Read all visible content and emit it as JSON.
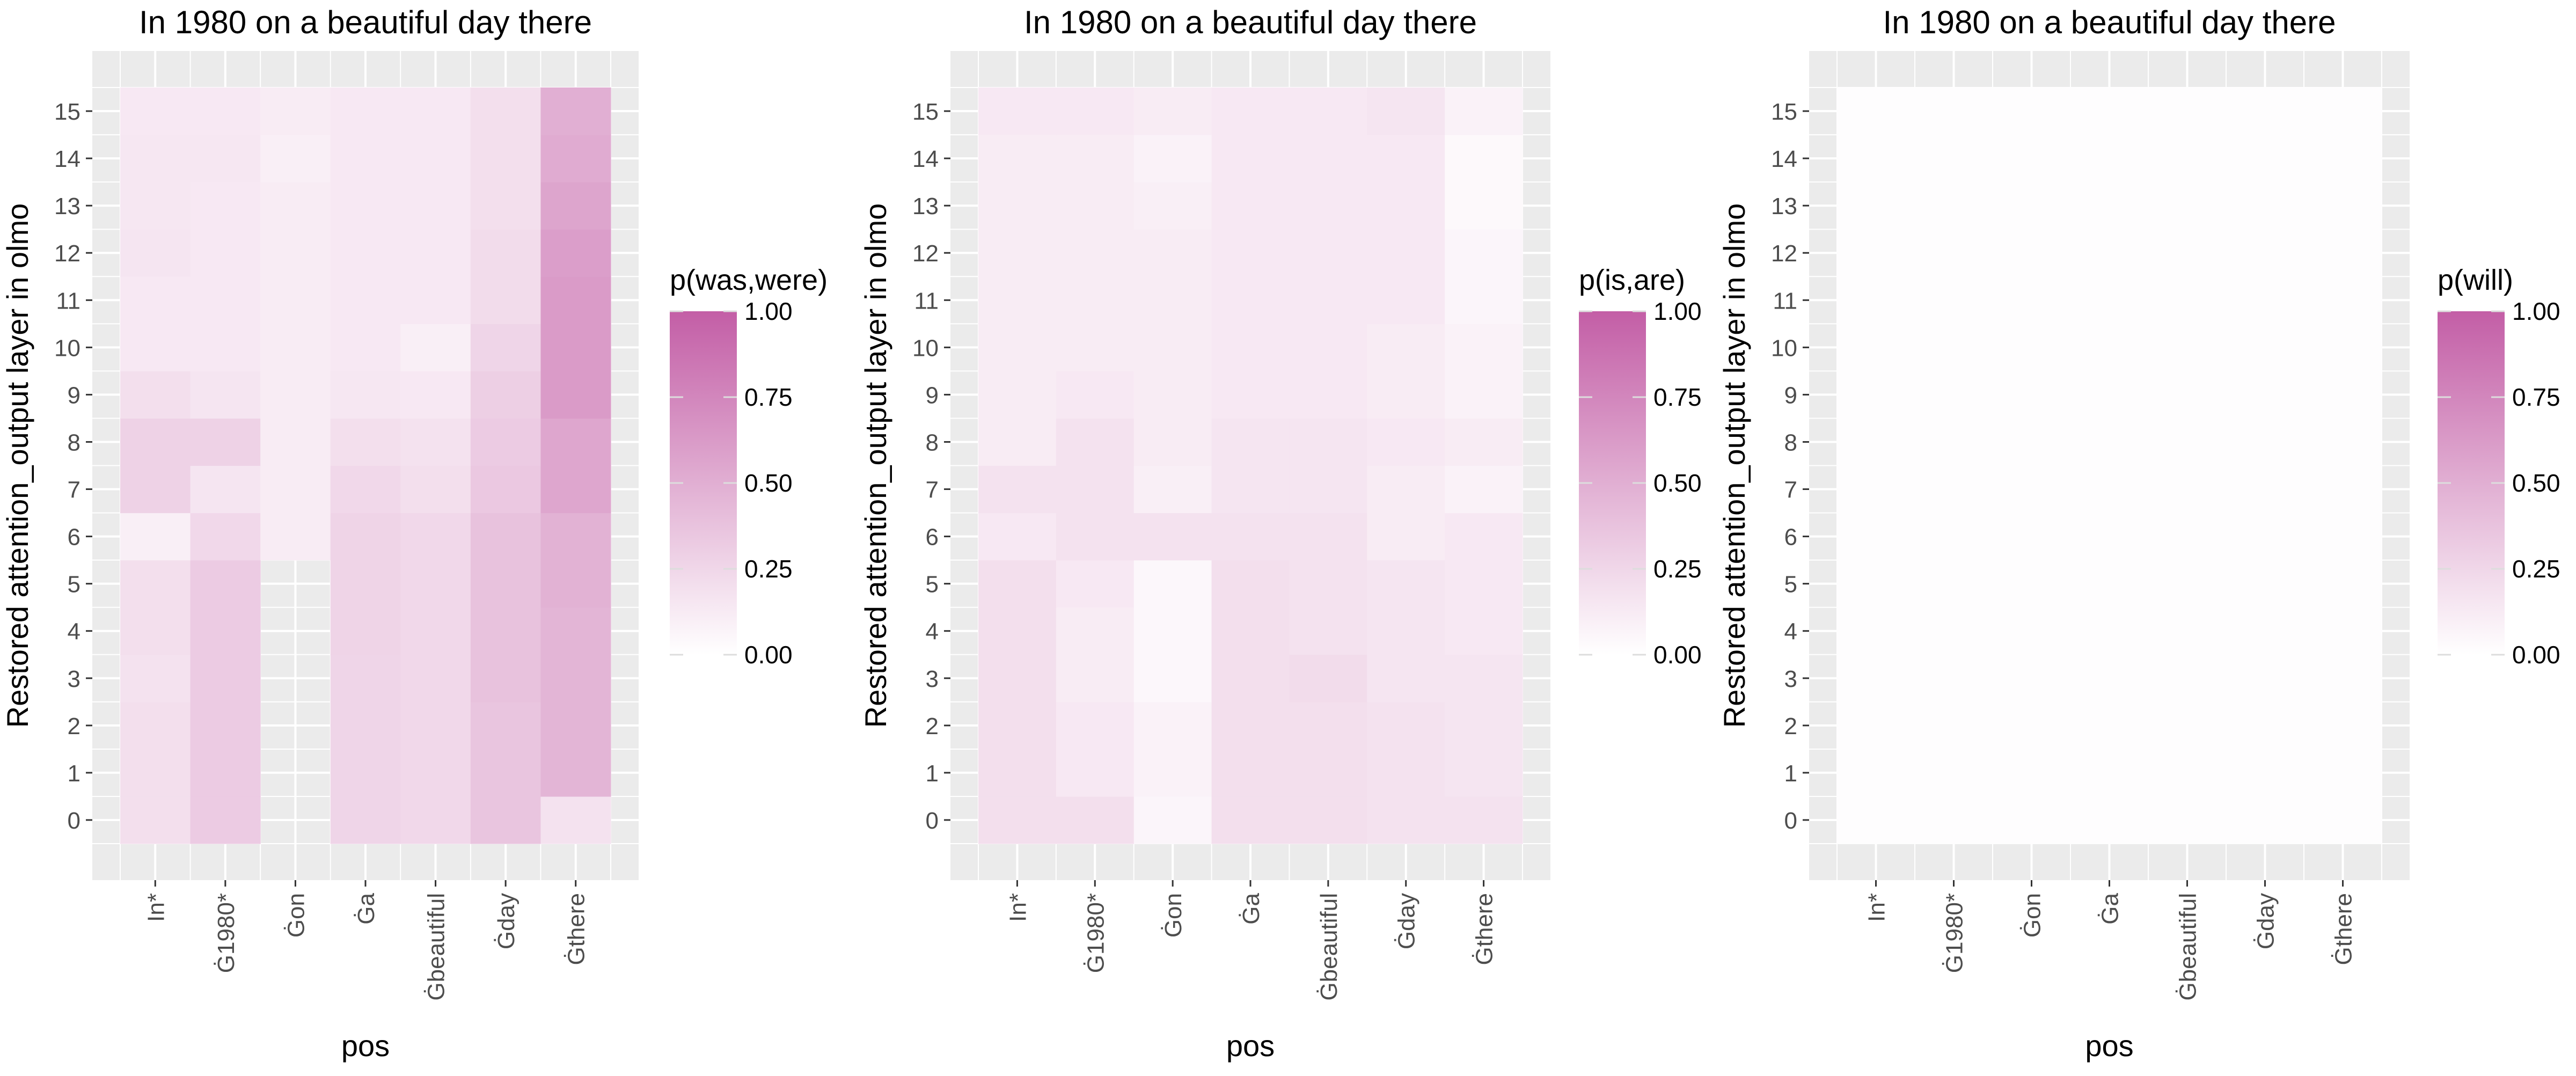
{
  "colors": {
    "panel_background": "#ebebeb",
    "grid": "#ffffff",
    "low": "#ffffff",
    "high": "#c35ea6"
  },
  "chart_data": [
    {
      "type": "heatmap",
      "title": "In 1980 on a beautiful day there",
      "xlabel": "pos",
      "ylabel": "Restored attention_output layer in olmo",
      "legend_title": "p(was,were)",
      "legend_ticks": [
        "0.00",
        "0.25",
        "0.50",
        "0.75",
        "1.00"
      ],
      "value_range": [
        0,
        1
      ],
      "x": [
        "In*",
        "Ġ1980*",
        "Ġon",
        "Ġa",
        "Ġbeautiful",
        "Ġday",
        "Ġthere"
      ],
      "y": [
        "0",
        "1",
        "2",
        "3",
        "4",
        "5",
        "6",
        "7",
        "8",
        "9",
        "10",
        "11",
        "12",
        "13",
        "14",
        "15"
      ],
      "z": [
        [
          0.2,
          0.32,
          null,
          0.26,
          0.24,
          0.36,
          0.18
        ],
        [
          0.2,
          0.32,
          null,
          0.26,
          0.24,
          0.36,
          0.46
        ],
        [
          0.2,
          0.32,
          null,
          0.26,
          0.24,
          0.36,
          0.46
        ],
        [
          0.18,
          0.32,
          null,
          0.26,
          0.24,
          0.38,
          0.46
        ],
        [
          0.2,
          0.32,
          null,
          0.27,
          0.24,
          0.38,
          0.46
        ],
        [
          0.2,
          0.32,
          null,
          0.27,
          0.24,
          0.38,
          0.48
        ],
        [
          0.1,
          0.24,
          0.12,
          0.27,
          0.24,
          0.38,
          0.48
        ],
        [
          0.28,
          0.16,
          0.12,
          0.24,
          0.2,
          0.34,
          0.55
        ],
        [
          0.28,
          0.28,
          0.12,
          0.2,
          0.18,
          0.32,
          0.55
        ],
        [
          0.2,
          0.16,
          0.12,
          0.15,
          0.14,
          0.3,
          0.62
        ],
        [
          0.14,
          0.14,
          0.12,
          0.14,
          0.1,
          0.26,
          0.62
        ],
        [
          0.14,
          0.14,
          0.12,
          0.14,
          0.14,
          0.22,
          0.62
        ],
        [
          0.16,
          0.14,
          0.12,
          0.14,
          0.14,
          0.22,
          0.6
        ],
        [
          0.15,
          0.14,
          0.12,
          0.14,
          0.14,
          0.2,
          0.56
        ],
        [
          0.15,
          0.15,
          0.1,
          0.14,
          0.14,
          0.2,
          0.52
        ],
        [
          0.14,
          0.14,
          0.12,
          0.14,
          0.14,
          0.2,
          0.5
        ]
      ]
    },
    {
      "type": "heatmap",
      "title": "In 1980 on a beautiful day there",
      "xlabel": "pos",
      "ylabel": "Restored attention_output layer in olmo",
      "legend_title": "p(is,are)",
      "legend_ticks": [
        "0.00",
        "0.25",
        "0.50",
        "0.75",
        "1.00"
      ],
      "value_range": [
        0,
        1
      ],
      "x": [
        "In*",
        "Ġ1980*",
        "Ġon",
        "Ġa",
        "Ġbeautiful",
        "Ġday",
        "Ġthere"
      ],
      "y": [
        "0",
        "1",
        "2",
        "3",
        "4",
        "5",
        "6",
        "7",
        "8",
        "9",
        "10",
        "11",
        "12",
        "13",
        "14",
        "15"
      ],
      "z": [
        [
          0.2,
          0.2,
          0.06,
          0.2,
          0.2,
          0.18,
          0.18
        ],
        [
          0.2,
          0.14,
          0.08,
          0.2,
          0.2,
          0.18,
          0.16
        ],
        [
          0.2,
          0.14,
          0.08,
          0.2,
          0.2,
          0.18,
          0.16
        ],
        [
          0.2,
          0.12,
          0.05,
          0.2,
          0.22,
          0.16,
          0.16
        ],
        [
          0.2,
          0.12,
          0.05,
          0.2,
          0.18,
          0.16,
          0.14
        ],
        [
          0.2,
          0.14,
          0.05,
          0.2,
          0.18,
          0.16,
          0.14
        ],
        [
          0.14,
          0.18,
          0.18,
          0.18,
          0.18,
          0.12,
          0.14
        ],
        [
          0.18,
          0.18,
          0.1,
          0.16,
          0.16,
          0.12,
          0.08
        ],
        [
          0.12,
          0.18,
          0.12,
          0.16,
          0.16,
          0.14,
          0.12
        ],
        [
          0.12,
          0.14,
          0.12,
          0.14,
          0.14,
          0.12,
          0.08
        ],
        [
          0.12,
          0.12,
          0.12,
          0.14,
          0.14,
          0.12,
          0.08
        ],
        [
          0.12,
          0.12,
          0.12,
          0.14,
          0.14,
          0.14,
          0.06
        ],
        [
          0.12,
          0.12,
          0.12,
          0.14,
          0.14,
          0.14,
          0.06
        ],
        [
          0.12,
          0.12,
          0.1,
          0.14,
          0.14,
          0.14,
          0.04
        ],
        [
          0.12,
          0.12,
          0.08,
          0.14,
          0.14,
          0.14,
          0.04
        ],
        [
          0.14,
          0.14,
          0.12,
          0.14,
          0.14,
          0.16,
          0.08
        ]
      ]
    },
    {
      "type": "heatmap",
      "title": "In 1980 on a beautiful day there",
      "xlabel": "pos",
      "ylabel": "Restored attention_output layer in olmo",
      "legend_title": "p(will)",
      "legend_ticks": [
        "0.00",
        "0.25",
        "0.50",
        "0.75",
        "1.00"
      ],
      "value_range": [
        0,
        1
      ],
      "x": [
        "In*",
        "Ġ1980*",
        "Ġon",
        "Ġa",
        "Ġbeautiful",
        "Ġday",
        "Ġthere"
      ],
      "y": [
        "0",
        "1",
        "2",
        "3",
        "4",
        "5",
        "6",
        "7",
        "8",
        "9",
        "10",
        "11",
        "12",
        "13",
        "14",
        "15"
      ],
      "z": [
        [
          0.01,
          0.01,
          0.01,
          0.015,
          0.01,
          0.015,
          0.015
        ],
        [
          0.01,
          0.01,
          0.01,
          0.015,
          0.01,
          0.015,
          0.015
        ],
        [
          0.01,
          0.01,
          0.015,
          0.015,
          0.01,
          0.015,
          0.015
        ],
        [
          0.01,
          0.01,
          0.01,
          0.01,
          0.01,
          0.015,
          0.015
        ],
        [
          0.01,
          0.01,
          0.01,
          0.01,
          0.01,
          0.01,
          0.015
        ],
        [
          0.01,
          0.01,
          0.01,
          0.01,
          0.01,
          0.01,
          0.015
        ],
        [
          0.01,
          0.01,
          0.015,
          0.01,
          0.01,
          0.01,
          0.015
        ],
        [
          0.015,
          0.01,
          0.01,
          0.01,
          0.015,
          0.01,
          0.015
        ],
        [
          0.01,
          0.015,
          0.01,
          0.01,
          0.01,
          0.01,
          0.01
        ],
        [
          0.01,
          0.01,
          0.01,
          0.01,
          0.01,
          0.01,
          0.01
        ],
        [
          0.01,
          0.01,
          0.01,
          0.01,
          0.01,
          0.01,
          0.01
        ],
        [
          0.01,
          0.01,
          0.01,
          0.01,
          0.01,
          0.01,
          0.01
        ],
        [
          0.01,
          0.01,
          0.01,
          0.01,
          0.01,
          0.01,
          0.01
        ],
        [
          0.01,
          0.01,
          0.01,
          0.01,
          0.01,
          0.01,
          0.01
        ],
        [
          0.01,
          0.01,
          0.01,
          0.01,
          0.01,
          0.01,
          0.01
        ],
        [
          0.01,
          0.01,
          0.01,
          0.01,
          0.01,
          0.01,
          0.01
        ]
      ]
    }
  ]
}
